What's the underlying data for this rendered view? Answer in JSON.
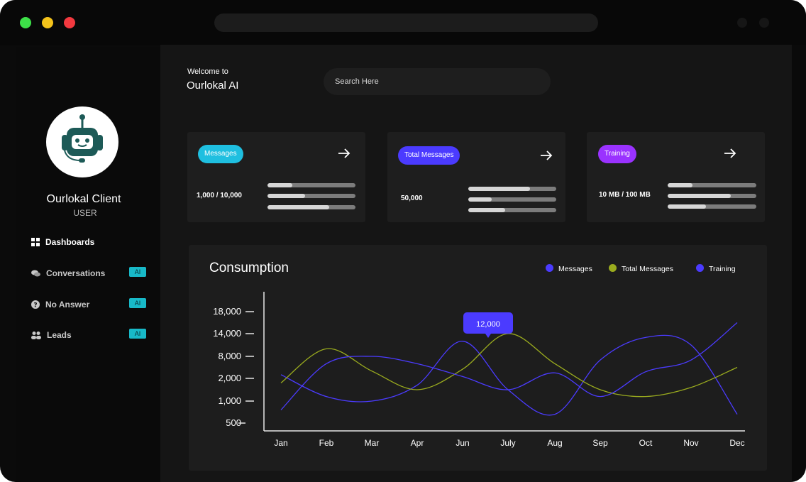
{
  "app": {
    "welcome": "Welcome to",
    "name": "Ourlokal AI"
  },
  "user": {
    "name": "Ourlokal Client",
    "role": "USER"
  },
  "nav": [
    {
      "label": "Dashboards",
      "icon": "grid-icon",
      "badge": ""
    },
    {
      "label": "Conversations",
      "icon": "chat-icon",
      "badge": "AI"
    },
    {
      "label": "No Answer",
      "icon": "question-icon",
      "badge": "AI"
    },
    {
      "label": "Leads",
      "icon": "users-icon",
      "badge": "AI"
    }
  ],
  "search": {
    "placeholder": "Search Here"
  },
  "cards": [
    {
      "label": "Messages",
      "value": "1,000 / 10,000",
      "color": "#1fbfe0",
      "bars": [
        0.28,
        0.43,
        0.7
      ]
    },
    {
      "label": "Total Messages",
      "value": "50,000",
      "color": "#4b3bff",
      "bars": [
        0.7,
        0.27,
        0.42
      ]
    },
    {
      "label": "Training",
      "value": "10 MB / 100 MB",
      "color": "#9a32ff",
      "bars": [
        0.28,
        0.71,
        0.43
      ]
    }
  ],
  "chart": {
    "title": "Consumption",
    "tooltip": "12,000"
  },
  "chart_data": {
    "type": "line",
    "title": "Consumption",
    "categories": [
      "Jan",
      "Feb",
      "Mar",
      "Apr",
      "Jun",
      "July",
      "Aug",
      "Sep",
      "Oct",
      "Nov",
      "Dec"
    ],
    "y_tick_labels": [
      "500",
      "1,000",
      "2,000",
      "8,000",
      "14,000",
      "18,000"
    ],
    "series": [
      {
        "name": "Messages",
        "color": "#4b3bff",
        "values": [
          3000,
          1200,
          1000,
          1700,
          12000,
          1500,
          700,
          7000,
          13000,
          11000,
          700
        ]
      },
      {
        "name": "Total Messages",
        "color": "#9aab1e",
        "values": [
          1800,
          10000,
          4000,
          1500,
          4500,
          14000,
          6000,
          1500,
          1200,
          1600,
          5000
        ]
      },
      {
        "name": "Training",
        "color": "#4b3bff",
        "values": [
          800,
          6000,
          8000,
          6000,
          2500,
          1500,
          3500,
          1200,
          3800,
          7000,
          16000
        ]
      }
    ],
    "annotation": {
      "category": "Jun",
      "label": "12,000"
    },
    "legend": "top-right"
  }
}
